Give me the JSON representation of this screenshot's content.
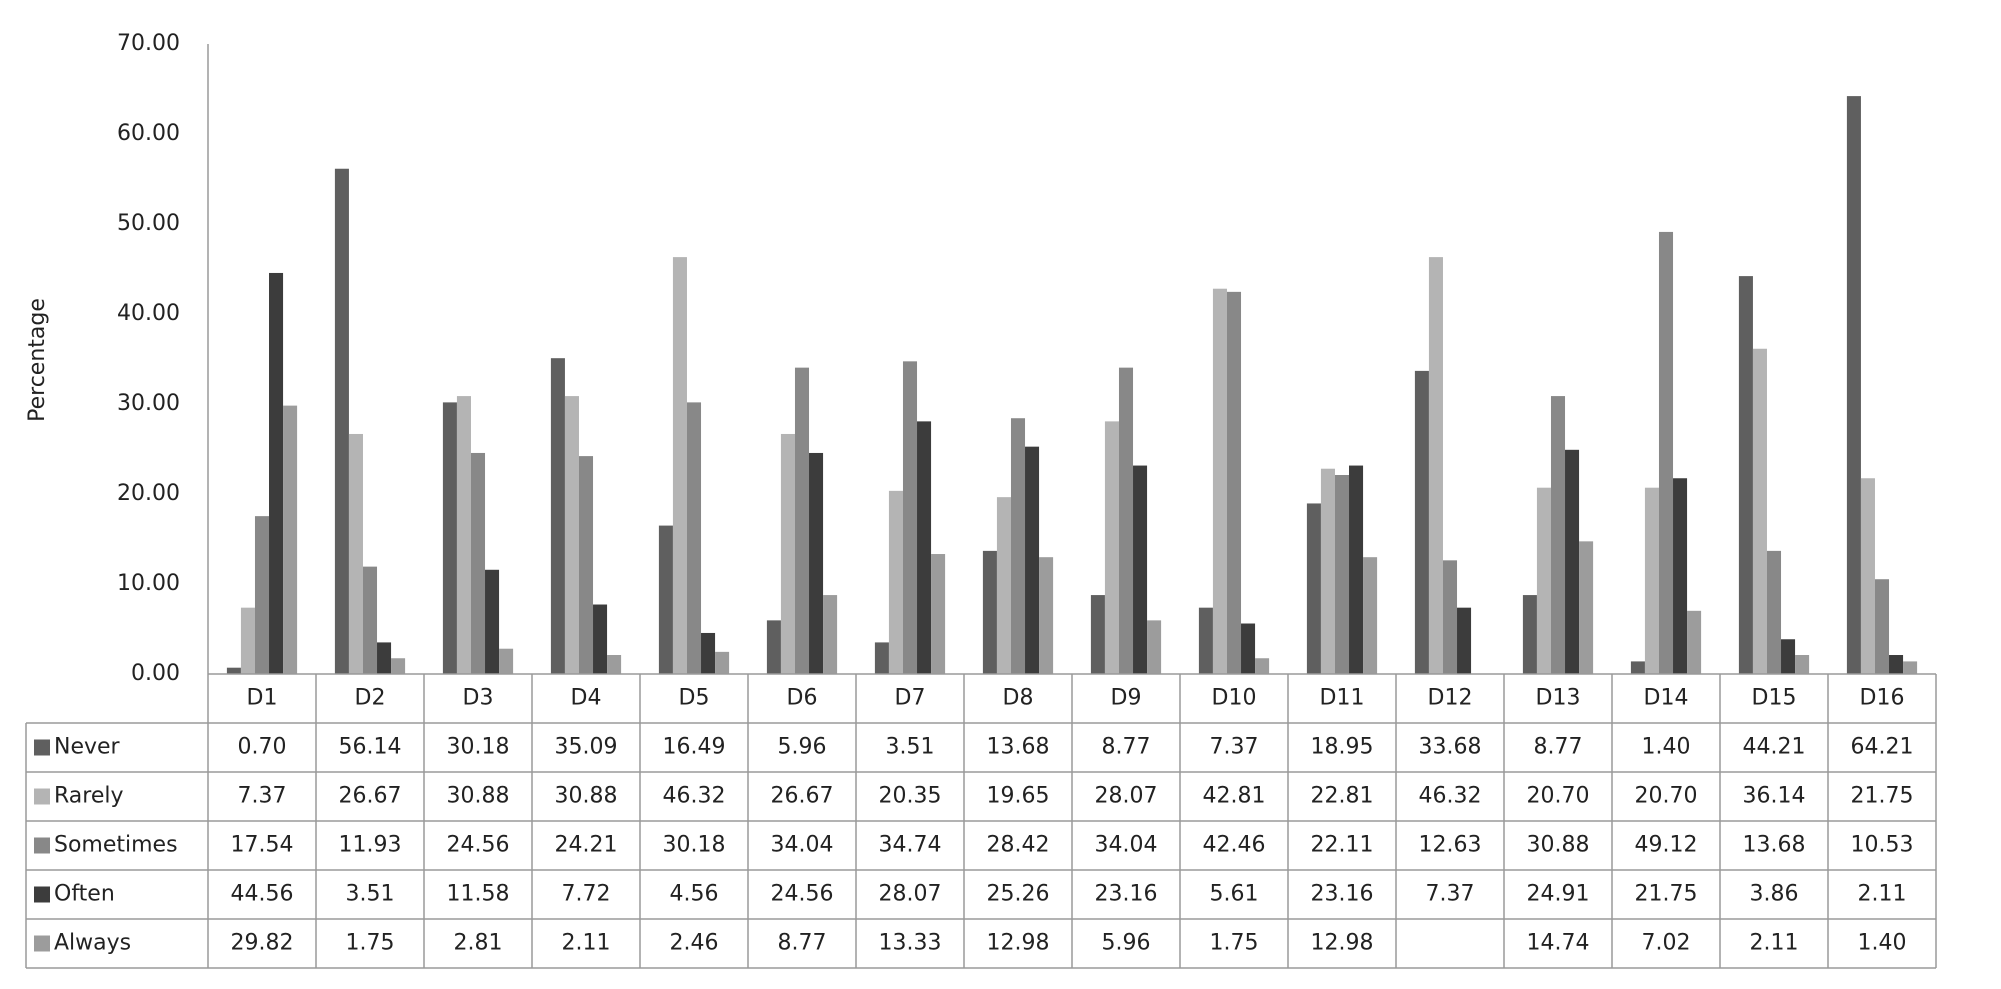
{
  "chart_data": {
    "type": "bar",
    "y_label": "Percentage",
    "categories": [
      "D1",
      "D2",
      "D3",
      "D4",
      "D5",
      "D6",
      "D7",
      "D8",
      "D9",
      "D10",
      "D11",
      "D12",
      "D13",
      "D14",
      "D15",
      "D16"
    ],
    "ylim": [
      0,
      70
    ],
    "yticks": [
      {
        "value": 0,
        "label": "0.00"
      },
      {
        "value": 10,
        "label": "10.00"
      },
      {
        "value": 20,
        "label": "20.00"
      },
      {
        "value": 30,
        "label": "30.00"
      },
      {
        "value": 40,
        "label": "40.00"
      },
      {
        "value": 50,
        "label": "50.00"
      },
      {
        "value": 60,
        "label": "60.00"
      },
      {
        "value": 70,
        "label": "70.00"
      }
    ],
    "grid": false,
    "series": [
      {
        "name": "Never",
        "color": "#5f5f5f",
        "values": [
          0.7,
          56.14,
          30.18,
          35.09,
          16.49,
          5.96,
          3.51,
          13.68,
          8.77,
          7.37,
          18.95,
          33.68,
          8.77,
          1.4,
          44.21,
          64.21
        ],
        "value_labels": [
          "0.70",
          "56.14",
          "30.18",
          "35.09",
          "16.49",
          "5.96",
          "3.51",
          "13.68",
          "8.77",
          "7.37",
          "18.95",
          "33.68",
          "8.77",
          "1.40",
          "44.21",
          "64.21"
        ]
      },
      {
        "name": "Rarely",
        "color": "#b4b4b4",
        "values": [
          7.37,
          26.67,
          30.88,
          30.88,
          46.32,
          26.67,
          20.35,
          19.65,
          28.07,
          42.81,
          22.81,
          46.32,
          20.7,
          20.7,
          36.14,
          21.75
        ],
        "value_labels": [
          "7.37",
          "26.67",
          "30.88",
          "30.88",
          "46.32",
          "26.67",
          "20.35",
          "19.65",
          "28.07",
          "42.81",
          "22.81",
          "46.32",
          "20.70",
          "20.70",
          "36.14",
          "21.75"
        ]
      },
      {
        "name": "Sometimes",
        "color": "#888888",
        "values": [
          17.54,
          11.93,
          24.56,
          24.21,
          30.18,
          34.04,
          34.74,
          28.42,
          34.04,
          42.46,
          22.11,
          12.63,
          30.88,
          49.12,
          13.68,
          10.53
        ],
        "value_labels": [
          "17.54",
          "11.93",
          "24.56",
          "24.21",
          "30.18",
          "34.04",
          "34.74",
          "28.42",
          "34.04",
          "42.46",
          "22.11",
          "12.63",
          "30.88",
          "49.12",
          "13.68",
          "10.53"
        ]
      },
      {
        "name": "Often",
        "color": "#3c3c3c",
        "values": [
          44.56,
          3.51,
          11.58,
          7.72,
          4.56,
          24.56,
          28.07,
          25.26,
          23.16,
          5.61,
          23.16,
          7.37,
          24.91,
          21.75,
          3.86,
          2.11
        ],
        "value_labels": [
          "44.56",
          "3.51",
          "11.58",
          "7.72",
          "4.56",
          "24.56",
          "28.07",
          "25.26",
          "23.16",
          "5.61",
          "23.16",
          "7.37",
          "24.91",
          "21.75",
          "3.86",
          "2.11"
        ]
      },
      {
        "name": "Always",
        "color": "#9c9c9c",
        "values": [
          29.82,
          1.75,
          2.81,
          2.11,
          2.46,
          8.77,
          13.33,
          12.98,
          5.96,
          1.75,
          12.98,
          null,
          14.74,
          7.02,
          2.11,
          1.4
        ],
        "value_labels": [
          "29.82",
          "1.75",
          "2.81",
          "2.11",
          "2.46",
          "8.77",
          "13.33",
          "12.98",
          "5.96",
          "1.75",
          "12.98",
          null,
          "14.74",
          "7.02",
          "2.11",
          "1.40"
        ]
      }
    ]
  }
}
